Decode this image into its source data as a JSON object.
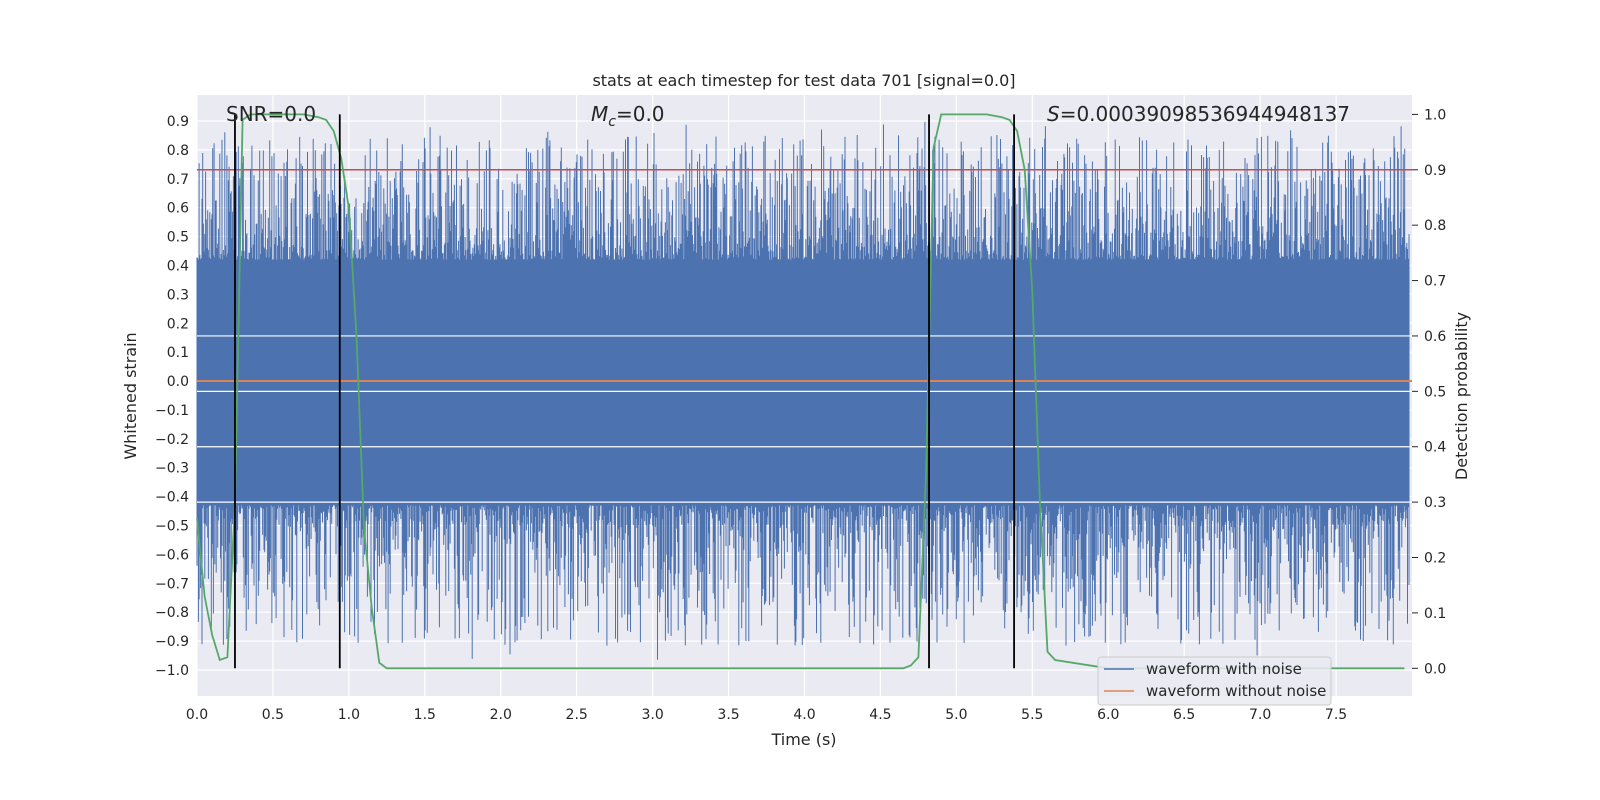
{
  "chart_data": {
    "type": "line",
    "title": "stats at each timestep for test data 701 [signal=0.0]",
    "xlabel": "Time (s)",
    "ylabel_left": "Whitened strain",
    "ylabel_right": "Detection probability",
    "xlim": [
      0.0,
      8.0
    ],
    "ylim_left": [
      -1.09,
      0.99
    ],
    "ylim_right": [
      -0.05,
      1.035
    ],
    "x_ticks": [
      "0.0",
      "0.5",
      "1.0",
      "1.5",
      "2.0",
      "2.5",
      "3.0",
      "3.5",
      "4.0",
      "4.5",
      "5.0",
      "5.5",
      "6.0",
      "6.5",
      "7.0",
      "7.5"
    ],
    "y_ticks_left": [
      "-1.0",
      "-0.9",
      "-0.8",
      "-0.7",
      "-0.6",
      "-0.5",
      "-0.4",
      "-0.3",
      "-0.2",
      "-0.1",
      "0.0",
      "0.1",
      "0.2",
      "0.3",
      "0.4",
      "0.5",
      "0.6",
      "0.7",
      "0.8",
      "0.9"
    ],
    "y_ticks_right": [
      "0.0",
      "0.1",
      "0.2",
      "0.3",
      "0.4",
      "0.5",
      "0.6",
      "0.7",
      "0.8",
      "0.9",
      "1.0"
    ],
    "grid": true,
    "legend_position": "lower-right",
    "annotations": {
      "snr": "SNR=0.0",
      "mc_symbol": "M",
      "mc_sub": "c",
      "mc_value": "=0.0",
      "s_symbol": "S",
      "s_value": "=0.0003909853694494813​7"
    },
    "series": [
      {
        "name": "waveform with noise",
        "axis": "left",
        "color": "#4c72b0",
        "description_kind": "noise band",
        "band_core": [
          -0.43,
          0.42
        ],
        "envelope": [
          -0.97,
          0.9
        ]
      },
      {
        "name": "waveform without noise",
        "axis": "left",
        "color": "#dd8452",
        "values": [
          0.0
        ]
      },
      {
        "name": "detection probability",
        "axis": "right",
        "color": "#55a868",
        "x": [
          0.0,
          0.05,
          0.1,
          0.15,
          0.2,
          0.25,
          0.3,
          0.35,
          0.4,
          0.5,
          0.6,
          0.7,
          0.8,
          0.85,
          0.9,
          0.95,
          1.0,
          1.05,
          1.1,
          1.15,
          1.2,
          1.25,
          1.3,
          2.0,
          3.0,
          4.0,
          4.5,
          4.65,
          4.7,
          4.75,
          4.8,
          4.85,
          4.9,
          5.0,
          5.1,
          5.2,
          5.3,
          5.35,
          5.4,
          5.45,
          5.5,
          5.55,
          5.6,
          5.65,
          6.0,
          7.0,
          7.95
        ],
        "values": [
          0.27,
          0.13,
          0.06,
          0.015,
          0.02,
          0.3,
          0.99,
          1.0,
          1.0,
          1.0,
          1.0,
          1.0,
          0.995,
          0.99,
          0.97,
          0.92,
          0.83,
          0.6,
          0.25,
          0.11,
          0.01,
          0.0,
          0.0,
          0.0,
          0.0,
          0.0,
          0.0,
          0.0,
          0.005,
          0.02,
          0.35,
          0.94,
          1.0,
          1.0,
          1.0,
          1.0,
          0.995,
          0.99,
          0.97,
          0.9,
          0.68,
          0.3,
          0.03,
          0.015,
          0.0,
          0.0,
          0.0
        ]
      }
    ],
    "threshold_line": {
      "axis": "right",
      "value": 0.9,
      "color": "#c44e52"
    },
    "markers": {
      "color": "#000000",
      "x": [
        0.25,
        0.94,
        4.82,
        5.38
      ]
    }
  }
}
